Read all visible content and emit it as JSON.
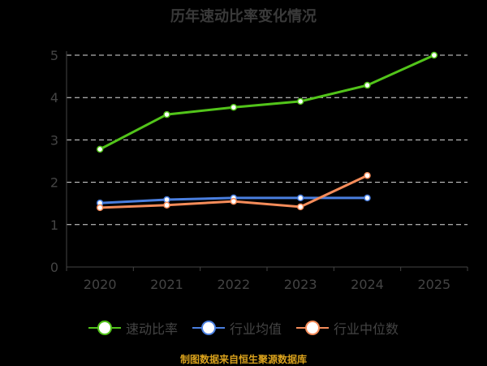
{
  "chart_data": {
    "type": "line",
    "title": "历年速动比率变化情况",
    "categories": [
      "2020",
      "2021",
      "2022",
      "2023",
      "2024",
      "2025"
    ],
    "ylim": [
      0,
      5
    ],
    "yticks": [
      "0",
      "1",
      "2",
      "3",
      "4",
      "5"
    ],
    "grid": true,
    "legend_position": "bottom",
    "series": [
      {
        "name": "速动比率",
        "color": "#52c41a",
        "values": [
          2.78,
          3.6,
          3.77,
          3.91,
          4.29,
          5.0
        ]
      },
      {
        "name": "行业均值",
        "color": "#4a7fe0",
        "values": [
          1.51,
          1.59,
          1.63,
          1.63,
          1.63,
          null
        ]
      },
      {
        "name": "行业中位数",
        "color": "#f58c5a",
        "values": [
          1.4,
          1.46,
          1.55,
          1.42,
          2.16,
          null
        ]
      }
    ]
  },
  "source": "制图数据来自恒生聚源数据库"
}
